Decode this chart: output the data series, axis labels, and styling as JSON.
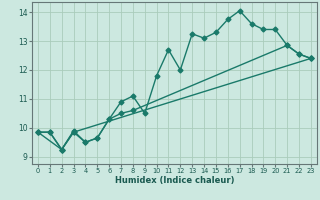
{
  "xlabel": "Humidex (Indice chaleur)",
  "ylabel": "",
  "xlim": [
    -0.5,
    23.5
  ],
  "ylim": [
    8.75,
    14.35
  ],
  "background_color": "#cce8e0",
  "grid_color": "#aaccbb",
  "line_color": "#1a7a6a",
  "line1_x": [
    0,
    1,
    2,
    3,
    4,
    5,
    6,
    7,
    8,
    9,
    10,
    11,
    12,
    13,
    14,
    15,
    16,
    17,
    18,
    19,
    20,
    21,
    22,
    23
  ],
  "line1_y": [
    9.85,
    9.85,
    9.25,
    9.9,
    9.5,
    9.65,
    10.3,
    10.9,
    11.1,
    10.5,
    11.8,
    12.7,
    12.0,
    13.25,
    13.1,
    13.3,
    13.75,
    14.05,
    13.6,
    13.4,
    13.4,
    12.85,
    12.55,
    12.4
  ],
  "line2_x": [
    0,
    2,
    3,
    4,
    5,
    6,
    7,
    8,
    21,
    22,
    23
  ],
  "line2_y": [
    9.85,
    9.25,
    9.85,
    9.5,
    9.65,
    10.3,
    10.5,
    10.6,
    12.85,
    12.55,
    12.4
  ],
  "line3_x": [
    0,
    1,
    2,
    3,
    23
  ],
  "line3_y": [
    9.85,
    9.85,
    9.25,
    9.85,
    12.4
  ],
  "xtick_labels": [
    "0",
    "1",
    "2",
    "3",
    "4",
    "5",
    "6",
    "7",
    "8",
    "9",
    "10",
    "11",
    "12",
    "13",
    "14",
    "15",
    "16",
    "17",
    "18",
    "19",
    "20",
    "21",
    "22",
    "23"
  ],
  "ytick_values": [
    9,
    10,
    11,
    12,
    13,
    14
  ],
  "marker": "D",
  "markersize": 2.5,
  "linewidth": 1.0
}
